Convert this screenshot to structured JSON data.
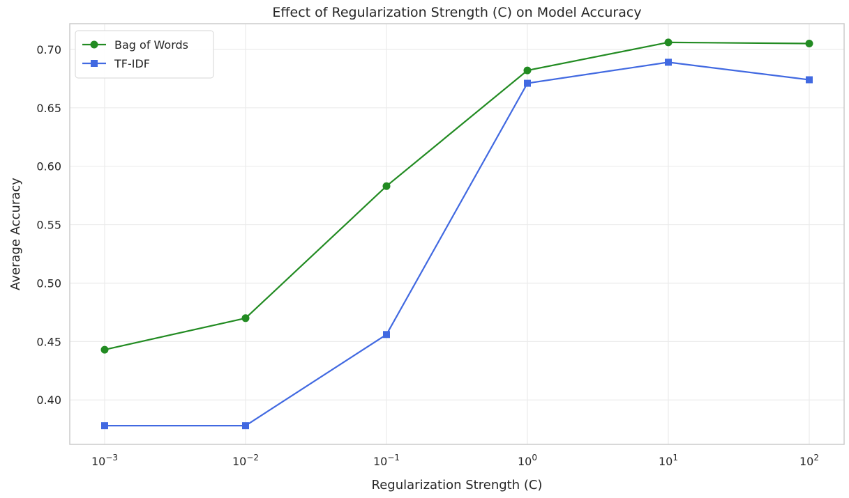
{
  "chart_data": {
    "type": "line",
    "title": "Effect of Regularization Strength (C) on Model Accuracy",
    "xlabel": "Regularization Strength (C)",
    "ylabel": "Average Accuracy",
    "x_scale": "log",
    "x": [
      0.001,
      0.01,
      0.1,
      1,
      10,
      100
    ],
    "x_tick_labels": [
      {
        "base": "10",
        "exp": "−3"
      },
      {
        "base": "10",
        "exp": "−2"
      },
      {
        "base": "10",
        "exp": "−1"
      },
      {
        "base": "10",
        "exp": "0"
      },
      {
        "base": "10",
        "exp": "1"
      },
      {
        "base": "10",
        "exp": "2"
      }
    ],
    "y_ticks": [
      "0.40",
      "0.45",
      "0.50",
      "0.55",
      "0.60",
      "0.65",
      "0.70"
    ],
    "ylim": [
      0.362,
      0.722
    ],
    "grid": true,
    "legend_position": "top-left",
    "series": [
      {
        "name": "Bag of Words",
        "color": "#228b22",
        "marker": "circle",
        "values": [
          0.443,
          0.47,
          0.583,
          0.682,
          0.706,
          0.705
        ]
      },
      {
        "name": "TF-IDF",
        "color": "#4169e1",
        "marker": "square",
        "values": [
          0.378,
          0.378,
          0.456,
          0.671,
          0.689,
          0.674
        ]
      }
    ]
  }
}
